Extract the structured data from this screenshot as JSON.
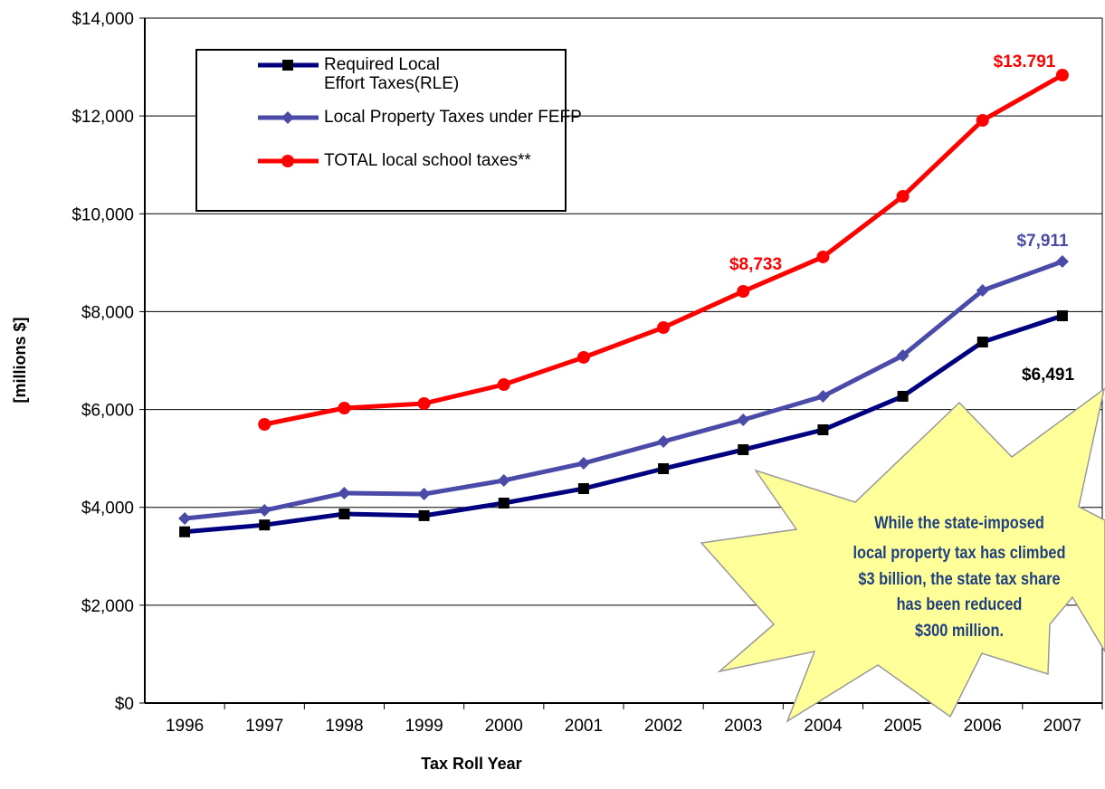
{
  "chart_data": {
    "type": "line",
    "x_label": "Tax Roll Year",
    "y_label": "[millions $]",
    "categories": [
      "1996",
      "1997",
      "1998",
      "1999",
      "2000",
      "2001",
      "2002",
      "2003",
      "2004",
      "2005",
      "2006",
      "2007"
    ],
    "series": [
      {
        "name": "Required Local Effort Taxes(RLE)",
        "color": "#000080",
        "marker": "square",
        "marker_color": "#000000",
        "values": [
          3500,
          3640,
          3865,
          3830,
          4087,
          4383,
          4790,
          5178,
          5585,
          6270,
          7379,
          7915
        ]
      },
      {
        "name": "Local Property Taxes under FEFP",
        "color": "#4a4aa8",
        "marker": "diamond",
        "marker_color": "#4a4aa8",
        "values": [
          3773,
          3939,
          4290,
          4272,
          4550,
          4901,
          5345,
          5789,
          6270,
          7102,
          8433,
          9025
        ]
      },
      {
        "name": "TOTAL local school taxes**",
        "color": "#ff0000",
        "marker": "circle",
        "marker_color": "#ff0000",
        "values": [
          null,
          5696,
          6029,
          6122,
          6510,
          7065,
          7675,
          8415,
          9118,
          10357,
          11910,
          12835
        ]
      }
    ],
    "ylim": [
      0,
      14000
    ],
    "yticks": [
      {
        "value": 0,
        "label": "$0"
      },
      {
        "value": 2000,
        "label": "$2,000"
      },
      {
        "value": 4000,
        "label": "$4,000"
      },
      {
        "value": 6000,
        "label": "$6,000"
      },
      {
        "value": 8000,
        "label": "$8,000"
      },
      {
        "value": 10000,
        "label": "$10,000"
      },
      {
        "value": 12000,
        "label": "$12,000"
      },
      {
        "value": 14000,
        "label": "$14,000"
      }
    ],
    "grid": true,
    "legend": "upper left",
    "annotations": [
      {
        "text": "$13.791",
        "color": "#ff0000"
      },
      {
        "text": "$8,733",
        "color": "#ff0000"
      },
      {
        "text": "$7,911",
        "color": "#4a4aa8"
      },
      {
        "text": "$6,491",
        "color": "#000000"
      }
    ],
    "callout": {
      "color": "#ffff99",
      "text_color": "#1f3f80",
      "lines": [
        "While the state-imposed",
        "local property tax has climbed",
        "$3 billion, the state tax share",
        "has been reduced",
        "$300 million."
      ]
    }
  }
}
